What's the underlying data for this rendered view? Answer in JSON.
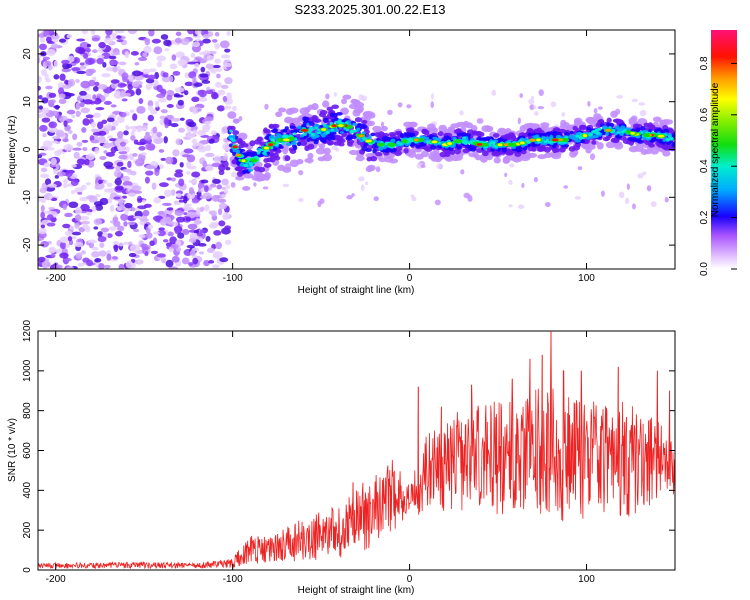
{
  "title": "S233.2025.301.00.22.E13",
  "chart_data": [
    {
      "type": "heatmap",
      "name": "spectrogram",
      "xlabel": "Height of straight line (km)",
      "ylabel": "Frequency (Hz)",
      "xlim": [
        -210,
        150
      ],
      "ylim": [
        -25,
        25
      ],
      "xticks": [
        -200,
        -100,
        0,
        100
      ],
      "yticks": [
        -20,
        -10,
        0,
        10,
        20
      ],
      "colorbar": {
        "label": "Normalized spectral amplitude",
        "range": [
          0,
          0.93
        ],
        "ticks": [
          0.0,
          0.2,
          0.4,
          0.6,
          0.8
        ]
      },
      "noise_region_x": [
        -210,
        -102
      ],
      "signal_track": [
        {
          "x": -102,
          "y": 4
        },
        {
          "x": -96,
          "y": -2
        },
        {
          "x": -90,
          "y": -3
        },
        {
          "x": -82,
          "y": 0
        },
        {
          "x": -75,
          "y": 2
        },
        {
          "x": -68,
          "y": 2
        },
        {
          "x": -60,
          "y": 4
        },
        {
          "x": -50,
          "y": 4
        },
        {
          "x": -42,
          "y": 5
        },
        {
          "x": -35,
          "y": 5
        },
        {
          "x": -28,
          "y": 3
        },
        {
          "x": -20,
          "y": 1
        },
        {
          "x": -10,
          "y": 1
        },
        {
          "x": 0,
          "y": 2
        },
        {
          "x": 10,
          "y": 2
        },
        {
          "x": 20,
          "y": 1
        },
        {
          "x": 30,
          "y": 2
        },
        {
          "x": 40,
          "y": 1
        },
        {
          "x": 50,
          "y": 1
        },
        {
          "x": 60,
          "y": 1
        },
        {
          "x": 70,
          "y": 2
        },
        {
          "x": 80,
          "y": 2
        },
        {
          "x": 90,
          "y": 2
        },
        {
          "x": 100,
          "y": 3
        },
        {
          "x": 110,
          "y": 4
        },
        {
          "x": 120,
          "y": 4
        },
        {
          "x": 130,
          "y": 3
        },
        {
          "x": 140,
          "y": 3
        },
        {
          "x": 150,
          "y": 2
        }
      ]
    },
    {
      "type": "line",
      "name": "snr",
      "xlabel": "Height of straight line (km)",
      "ylabel": "SNR (10 * v/v)",
      "xlim": [
        -210,
        150
      ],
      "ylim": [
        0,
        1200
      ],
      "xticks": [
        -200,
        -100,
        0,
        100
      ],
      "yticks": [
        0,
        200,
        400,
        600,
        800,
        1000,
        1200
      ],
      "color": "#ee2222",
      "envelope": [
        {
          "x": -210,
          "low": 8,
          "high": 35
        },
        {
          "x": -180,
          "low": 8,
          "high": 38
        },
        {
          "x": -150,
          "low": 8,
          "high": 40
        },
        {
          "x": -120,
          "low": 8,
          "high": 35
        },
        {
          "x": -100,
          "low": 10,
          "high": 60
        },
        {
          "x": -90,
          "low": 20,
          "high": 190
        },
        {
          "x": -80,
          "low": 25,
          "high": 160
        },
        {
          "x": -70,
          "low": 30,
          "high": 220
        },
        {
          "x": -60,
          "low": 40,
          "high": 260
        },
        {
          "x": -50,
          "low": 50,
          "high": 300
        },
        {
          "x": -40,
          "low": 60,
          "high": 330
        },
        {
          "x": -30,
          "low": 80,
          "high": 420
        },
        {
          "x": -20,
          "low": 120,
          "high": 520
        },
        {
          "x": -10,
          "low": 170,
          "high": 580
        },
        {
          "x": 0,
          "low": 300,
          "high": 420
        },
        {
          "x": 10,
          "low": 250,
          "high": 700
        },
        {
          "x": 20,
          "low": 280,
          "high": 740
        },
        {
          "x": 30,
          "low": 280,
          "high": 820
        },
        {
          "x": 40,
          "low": 280,
          "high": 840
        },
        {
          "x": 50,
          "low": 270,
          "high": 850
        },
        {
          "x": 60,
          "low": 280,
          "high": 860
        },
        {
          "x": 70,
          "low": 280,
          "high": 900
        },
        {
          "x": 80,
          "low": 240,
          "high": 940
        },
        {
          "x": 90,
          "low": 240,
          "high": 880
        },
        {
          "x": 100,
          "low": 250,
          "high": 860
        },
        {
          "x": 110,
          "low": 250,
          "high": 850
        },
        {
          "x": 120,
          "low": 260,
          "high": 860
        },
        {
          "x": 130,
          "low": 260,
          "high": 820
        },
        {
          "x": 140,
          "low": 320,
          "high": 760
        },
        {
          "x": 150,
          "low": 380,
          "high": 640
        }
      ],
      "peaks": [
        {
          "x": -32,
          "y": 440
        },
        {
          "x": 5,
          "y": 920
        },
        {
          "x": 18,
          "y": 820
        },
        {
          "x": 35,
          "y": 930
        },
        {
          "x": 58,
          "y": 960
        },
        {
          "x": 68,
          "y": 1060
        },
        {
          "x": 75,
          "y": 1080
        },
        {
          "x": 80,
          "y": 1220
        },
        {
          "x": 87,
          "y": 1000
        },
        {
          "x": 97,
          "y": 1000
        },
        {
          "x": 118,
          "y": 1020
        },
        {
          "x": 140,
          "y": 1000
        },
        {
          "x": 147,
          "y": 900
        }
      ]
    }
  ]
}
